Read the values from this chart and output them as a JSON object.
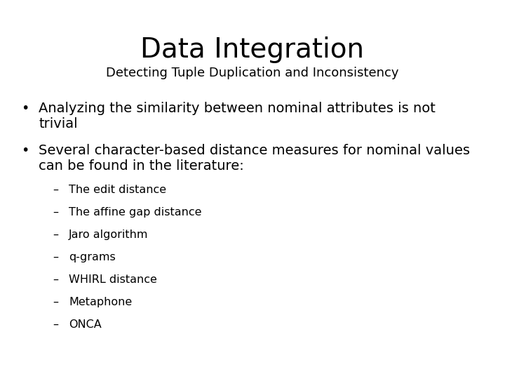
{
  "title": "Data Integration",
  "subtitle": "Detecting Tuple Duplication and Inconsistency",
  "bullet1_line1": "Analyzing the similarity between nominal attributes is not",
  "bullet1_line2": "trivial",
  "bullet2_line1": "Several character-based distance measures for nominal values",
  "bullet2_line2": "can be found in the literature:",
  "sub_bullets": [
    "The edit distance",
    "The affine gap distance",
    "Jaro algorithm",
    "q-grams",
    "WHIRL distance",
    "Metaphone",
    "ONCA"
  ],
  "bg_color": "#ffffff",
  "text_color": "#000000",
  "title_fontsize": 28,
  "subtitle_fontsize": 13,
  "bullet_fontsize": 14,
  "subbullet_fontsize": 11.5,
  "font_family": "DejaVu Sans"
}
